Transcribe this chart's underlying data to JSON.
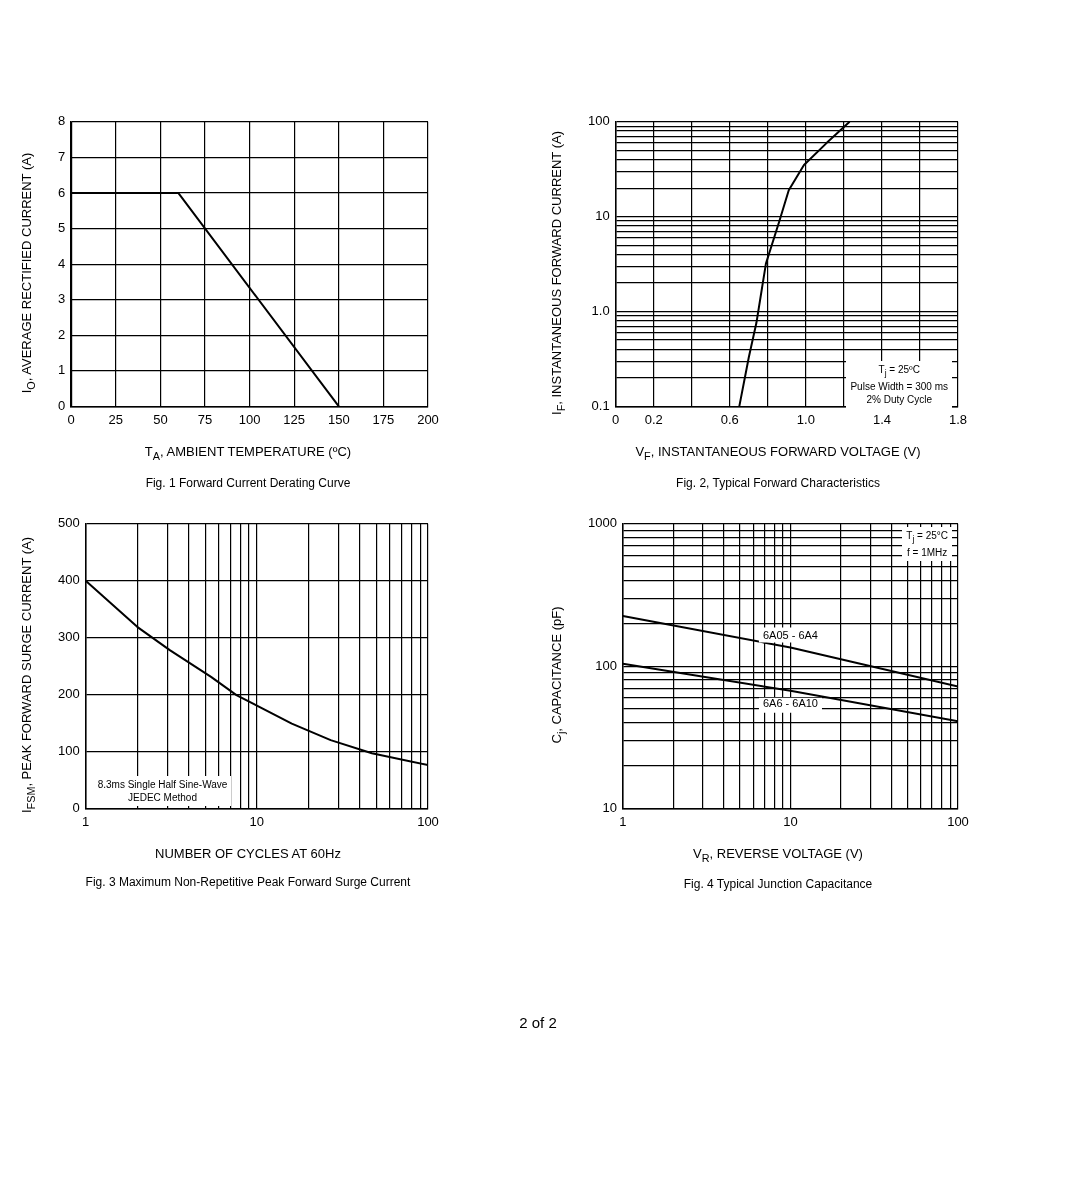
{
  "chart_data": [
    {
      "type": "line",
      "title": "Fig. 1  Forward Current Derating Curve",
      "xlabel": "T$_{A}$, AMBIENT TEMPERATURE (ºC)",
      "ylabel": "I$_{O}$, AVERAGE RECTIFIED CURRENT (A)",
      "x": [
        0,
        60,
        150
      ],
      "series": [
        {
          "color": "#000000",
          "values": [
            6,
            6,
            0
          ]
        }
      ],
      "xlim": [
        0,
        200
      ],
      "xticks": [
        0,
        25,
        50,
        75,
        100,
        125,
        150,
        175,
        200
      ],
      "ylim": [
        0,
        8
      ],
      "yticks": [
        0,
        1,
        2,
        3,
        4,
        5,
        6,
        7,
        8
      ],
      "grid": true
    },
    {
      "type": "line",
      "title": "Fig. 2, Typical Forward Characteristics",
      "xlabel": "V$_{F}$, INSTANTANEOUS FORWARD VOLTAGE (V)",
      "ylabel": "I$_{F}$, INSTANTANEOUS FORWARD CURRENT (A)",
      "annotations": [
        "T$_{j}$ = 25ºC",
        "Pulse Width = 300 ms",
        "2% Duty Cycle"
      ],
      "x": [
        0.65,
        0.7,
        0.74,
        0.79,
        0.86,
        0.91,
        0.99,
        1.11,
        1.23
      ],
      "series": [
        {
          "color": "#000000",
          "values": [
            0.1,
            0.33,
            0.76,
            3.2,
            8.9,
            19,
            35,
            60,
            100
          ]
        }
      ],
      "xlim": [
        0,
        1.8
      ],
      "xticks": [
        0,
        0.2,
        {
          "value": 0.4,
          "label": null
        },
        0.6,
        {
          "value": 0.8,
          "label": null
        },
        {
          "value": 1,
          "label": "1.0"
        },
        {
          "value": 1.2,
          "label": null
        },
        1.4,
        {
          "value": 1.6,
          "label": null
        },
        1.8
      ],
      "ylim": [
        0.1,
        100
      ],
      "yticks": [
        0.1,
        {
          "value": 0.2,
          "label": null
        },
        {
          "value": 0.3,
          "label": null
        },
        {
          "value": 0.4,
          "label": null
        },
        {
          "value": 0.5,
          "label": null
        },
        {
          "value": 0.6,
          "label": null
        },
        {
          "value": 0.7,
          "label": null
        },
        {
          "value": 0.8,
          "label": null
        },
        {
          "value": 0.9,
          "label": null
        },
        {
          "value": 1,
          "label": "1.0"
        },
        {
          "value": 2,
          "label": null
        },
        {
          "value": 3,
          "label": null
        },
        {
          "value": 4,
          "label": null
        },
        {
          "value": 5,
          "label": null
        },
        {
          "value": 6,
          "label": null
        },
        {
          "value": 7,
          "label": null
        },
        {
          "value": 8,
          "label": null
        },
        {
          "value": 9,
          "label": null
        },
        10,
        {
          "value": 20,
          "label": null
        },
        {
          "value": 30,
          "label": null
        },
        {
          "value": 40,
          "label": null
        },
        {
          "value": 50,
          "label": null
        },
        {
          "value": 60,
          "label": null
        },
        {
          "value": 70,
          "label": null
        },
        {
          "value": 80,
          "label": null
        },
        {
          "value": 90,
          "label": null
        },
        100
      ],
      "log": "y",
      "grid": true
    },
    {
      "type": "line",
      "title": "Fig. 3  Maximum Non-Repetitive Peak Forward Surge Current",
      "xlabel": "NUMBER OF CYCLES AT 60Hz",
      "ylabel": "I$_{FSM}$, PEAK FORWARD SURGE CURRENT (A)",
      "annotations": [
        "8.3ms Single Half Sine-Wave",
        "JEDEC Method"
      ],
      "x": [
        1,
        2,
        3.1,
        5.4,
        7.6,
        16,
        27,
        47,
        100
      ],
      "series": [
        {
          "color": "#000000",
          "values": [
            400,
            319,
            278,
            231,
            199,
            149,
            120,
            97,
            76
          ]
        }
      ],
      "xlim": [
        1,
        100
      ],
      "xticks": [
        1,
        {
          "value": 2,
          "label": null
        },
        {
          "value": 3,
          "label": null
        },
        {
          "value": 4,
          "label": null
        },
        {
          "value": 5,
          "label": null
        },
        {
          "value": 6,
          "label": null
        },
        {
          "value": 7,
          "label": null
        },
        {
          "value": 8,
          "label": null
        },
        {
          "value": 9,
          "label": null
        },
        10,
        {
          "value": 20,
          "label": null
        },
        {
          "value": 30,
          "label": null
        },
        {
          "value": 40,
          "label": null
        },
        {
          "value": 50,
          "label": null
        },
        {
          "value": 60,
          "label": null
        },
        {
          "value": 70,
          "label": null
        },
        {
          "value": 80,
          "label": null
        },
        {
          "value": 90,
          "label": null
        },
        100
      ],
      "ylim": [
        0,
        500
      ],
      "yticks": [
        0,
        100,
        200,
        300,
        400,
        500
      ],
      "log": "x",
      "grid": true
    },
    {
      "type": "line",
      "title": "Fig. 4  Typical Junction Capacitance",
      "xlabel": "V$_{R}$, REVERSE VOLTAGE (V)",
      "ylabel": "C$_{j}$, CAPACITANCE (pF)",
      "annotations": [
        "T$_{j}$ = 25°C",
        "f = 1MHz",
        "2 of 2"
      ],
      "x": [
        1,
        10,
        100
      ],
      "series": [
        {
          "name": "6A05 - 6A4",
          "color": "#000000",
          "values": [
            225,
            135,
            72
          ]
        },
        {
          "name": "6A6 - 6A10",
          "color": "#000000",
          "values": [
            104,
            67,
            41
          ]
        }
      ],
      "xlim": [
        1,
        100
      ],
      "xticks": [
        1,
        {
          "value": 2,
          "label": null
        },
        {
          "value": 3,
          "label": null
        },
        {
          "value": 4,
          "label": null
        },
        {
          "value": 5,
          "label": null
        },
        {
          "value": 6,
          "label": null
        },
        {
          "value": 7,
          "label": null
        },
        {
          "value": 8,
          "label": null
        },
        {
          "value": 9,
          "label": null
        },
        10,
        {
          "value": 20,
          "label": null
        },
        {
          "value": 30,
          "label": null
        },
        {
          "value": 40,
          "label": null
        },
        {
          "value": 50,
          "label": null
        },
        {
          "value": 60,
          "label": null
        },
        {
          "value": 70,
          "label": null
        },
        {
          "value": 80,
          "label": null
        },
        {
          "value": 90,
          "label": null
        },
        100
      ],
      "ylim": [
        10,
        1000
      ],
      "yticks": [
        10,
        {
          "value": 20,
          "label": null
        },
        {
          "value": 30,
          "label": null
        },
        {
          "value": 40,
          "label": null
        },
        {
          "value": 50,
          "label": null
        },
        {
          "value": 60,
          "label": null
        },
        {
          "value": 70,
          "label": null
        },
        {
          "value": 80,
          "label": null
        },
        {
          "value": 90,
          "label": null
        },
        100,
        {
          "value": 200,
          "label": null
        },
        {
          "value": 300,
          "label": null
        },
        {
          "value": 400,
          "label": null
        },
        {
          "value": 500,
          "label": null
        },
        {
          "value": 600,
          "label": null
        },
        {
          "value": 700,
          "label": null
        },
        {
          "value": 800,
          "label": null
        },
        {
          "value": 900,
          "label": null
        },
        1000
      ],
      "log": "xy",
      "grid": true
    }
  ]
}
